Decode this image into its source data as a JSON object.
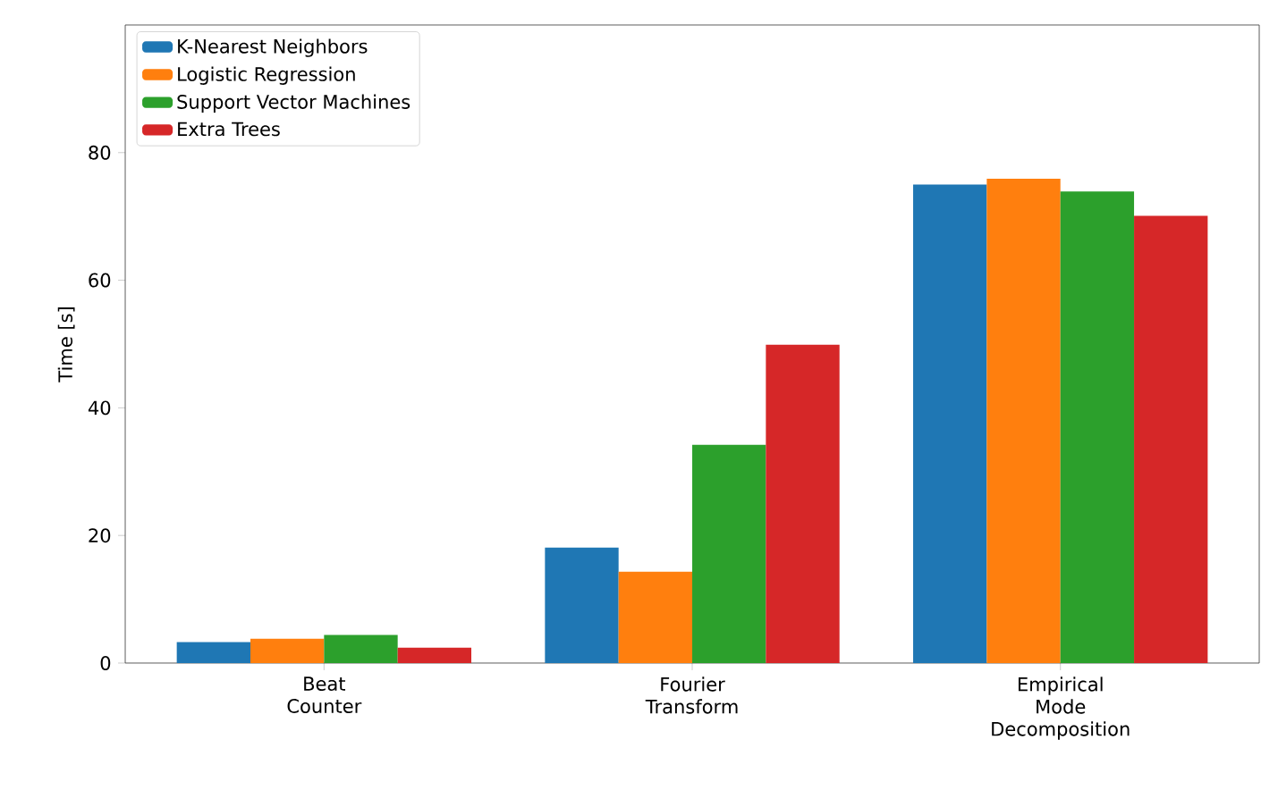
{
  "chart_data": {
    "type": "bar",
    "ylabel": "Time [s]",
    "categories": [
      "Beat\nCounter",
      "Fourier\nTransform",
      "Empirical\nMode\nDecomposition"
    ],
    "series": [
      {
        "name": "K-Nearest Neighbors",
        "color": "#1f77b4",
        "values": [
          3.3,
          18.1,
          75.0
        ]
      },
      {
        "name": "Logistic Regression",
        "color": "#ff7f0e",
        "values": [
          3.8,
          14.3,
          75.9
        ]
      },
      {
        "name": "Support Vector Machines",
        "color": "#2ca02c",
        "values": [
          4.4,
          34.2,
          73.9
        ]
      },
      {
        "name": "Extra Trees",
        "color": "#d62728",
        "values": [
          2.4,
          49.9,
          70.1
        ]
      }
    ],
    "ylim": [
      0,
      100
    ],
    "yticks": [
      0,
      20,
      40,
      60,
      80
    ],
    "grid": false,
    "legend": "top left"
  }
}
